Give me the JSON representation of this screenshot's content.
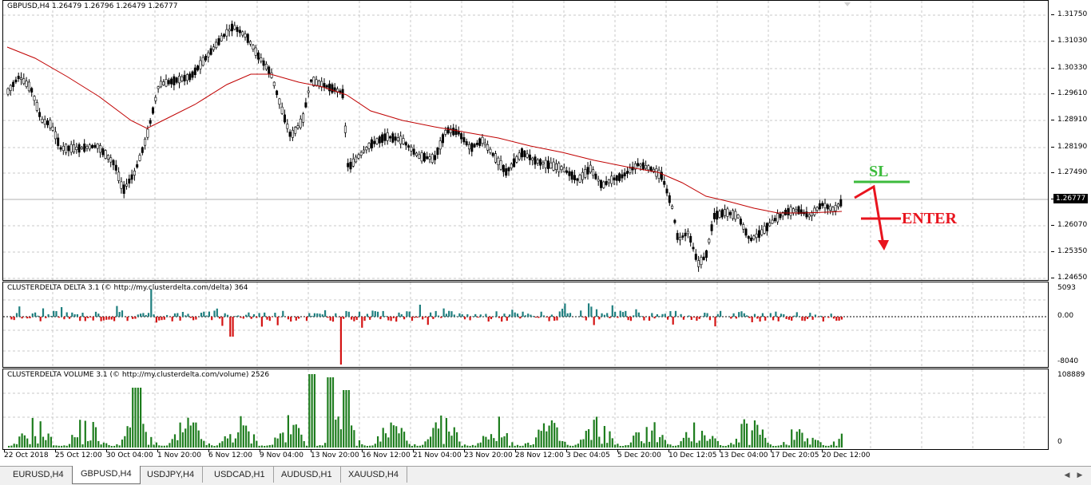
{
  "main_chart": {
    "title": "GBPUSD,H4  1.26479 1.26796 1.26479 1.26777",
    "price_labels": [
      "1.31750",
      "1.31030",
      "1.30330",
      "1.29610",
      "1.28910",
      "1.28190",
      "1.27490",
      "1.26777",
      "1.26070",
      "1.25350",
      "1.24650"
    ],
    "current_price": "1.26777",
    "annotations": {
      "sl": "SL",
      "enter": "ENTER"
    },
    "colors": {
      "sl": "#3dbb3d",
      "enter": "#e8141e",
      "ma": "#c00000",
      "candle": "#000000"
    }
  },
  "delta_panel": {
    "title": "CLUSTERDELTA DELTA 3.1 (© http://my.clusterdelta.com/delta) 364",
    "scale_labels": [
      "5093",
      "0.00",
      "-8040"
    ],
    "colors": {
      "positive": "#1f7f7f",
      "negative": "#d41414"
    }
  },
  "volume_panel": {
    "title": "CLUSTERDELTA VOLUME 3.1 (© http://my.clusterdelta.com/volume) 2526",
    "scale_labels": [
      "108889",
      "0"
    ],
    "colors": {
      "bar": "#1e7d1e"
    }
  },
  "time_axis": [
    "22 Oct 2018",
    "25 Oct 12:00",
    "30 Oct 04:00",
    "1 Nov 20:00",
    "6 Nov 12:00",
    "9 Nov 04:00",
    "13 Nov 20:00",
    "16 Nov 12:00",
    "21 Nov 04:00",
    "23 Nov 20:00",
    "28 Nov 12:00",
    "3 Dec 04:05",
    "5 Dec 20:00",
    "10 Dec 12:05",
    "13 Dec 04:00",
    "17 Dec 20:05",
    "20 Dec 12:00"
  ],
  "tabs": [
    {
      "label": "EURUSD,H4",
      "active": false
    },
    {
      "label": "GBPUSD,H4",
      "active": true
    },
    {
      "label": "USDJPY,H4",
      "active": false
    },
    {
      "label": "USDCAD,H1",
      "active": false
    },
    {
      "label": "AUDUSD,H1",
      "active": false
    },
    {
      "label": "XAUUSD,H4",
      "active": false
    }
  ]
}
